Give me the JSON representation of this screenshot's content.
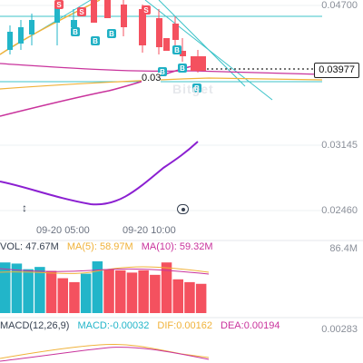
{
  "price_axis": {
    "top_label": "0.04700",
    "mid_label": "0.03145",
    "low_label": "0.02460",
    "current_price": "0.03977",
    "partial_label": "0.03"
  },
  "time_axis": {
    "labels": [
      "09-20 05:00",
      "09-20 10:00"
    ]
  },
  "watermark": "Bitget",
  "volume": {
    "vol": "VOL: 47.67M",
    "ma5": "MA(5): 58.97M",
    "ma10": "MA(10): 59.32M",
    "axis_max": "86.4M"
  },
  "macd": {
    "title": "MACD(12,26,9)",
    "macd": "MACD:-0.00032",
    "dif": "DIF:0.00162",
    "dea": "DEA:0.00194",
    "axis_label": "0.00283"
  },
  "colors": {
    "up": "#22b5c9",
    "down": "#f4515f",
    "ma5": "#f0b23a",
    "ma10": "#c9339c",
    "purple_line": "#8b1fd1",
    "teal_line": "#3cc3c9",
    "buy_marker": "#1fb0c4",
    "sell_marker": "#f4515f"
  },
  "markers": {
    "buy_letter": "B",
    "sell_letter": "S"
  },
  "chart_data": {
    "type": "candlestick",
    "volume_bars": [
      {
        "dir": "up",
        "level": 0.9
      },
      {
        "dir": "up",
        "level": 0.88
      },
      {
        "dir": "up",
        "level": 0.78
      },
      {
        "dir": "up",
        "level": 0.82
      },
      {
        "dir": "down",
        "level": 0.75
      },
      {
        "dir": "down",
        "level": 0.62
      },
      {
        "dir": "down",
        "level": 0.55
      },
      {
        "dir": "up",
        "level": 0.7
      },
      {
        "dir": "up",
        "level": 0.92
      },
      {
        "dir": "down",
        "level": 0.78
      },
      {
        "dir": "down",
        "level": 0.76
      },
      {
        "dir": "down",
        "level": 0.72
      },
      {
        "dir": "down",
        "level": 0.76
      },
      {
        "dir": "down",
        "level": 0.68
      },
      {
        "dir": "down",
        "level": 0.9
      },
      {
        "dir": "down",
        "level": 0.6
      },
      {
        "dir": "down",
        "level": 0.55
      },
      {
        "dir": "down",
        "level": 0.52
      }
    ]
  }
}
